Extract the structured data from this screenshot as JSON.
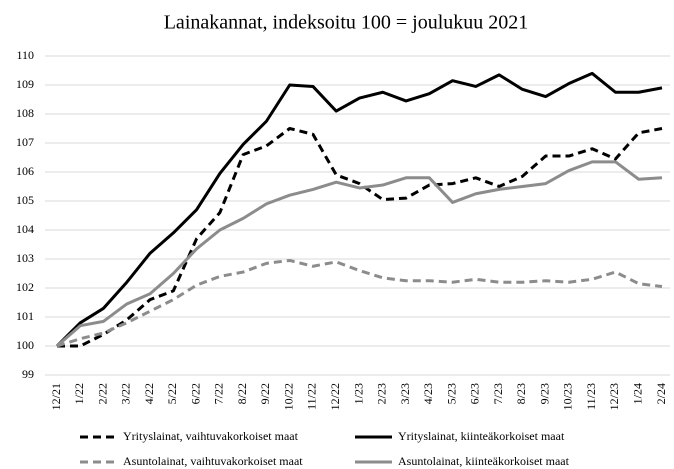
{
  "chart_data": {
    "type": "line",
    "title": "Lainakannat, indeksoitu 100 = joulukuu 2021",
    "categories": [
      "12/21",
      "1/22",
      "2/22",
      "3/22",
      "4/22",
      "5/22",
      "6/22",
      "7/22",
      "8/22",
      "9/22",
      "10/22",
      "11/22",
      "12/22",
      "1/23",
      "2/23",
      "3/23",
      "4/23",
      "5/23",
      "6/23",
      "7/23",
      "8/23",
      "9/23",
      "10/23",
      "11/23",
      "12/23",
      "1/24",
      "2/24"
    ],
    "series": [
      {
        "name": "Yrityslainat, vaihtuvakorkoiset maat",
        "color": "#000000",
        "dashed": true,
        "values": [
          100,
          100,
          100.4,
          100.9,
          101.6,
          101.9,
          103.7,
          104.6,
          106.6,
          106.9,
          107.5,
          107.3,
          105.9,
          105.6,
          105.05,
          105.1,
          105.55,
          105.6,
          105.8,
          105.5,
          105.85,
          106.55,
          106.55,
          106.8,
          106.45,
          107.35,
          107.5
        ]
      },
      {
        "name": "Yrityslainat, kiinteäkorkoiset maat",
        "color": "#000000",
        "dashed": false,
        "values": [
          100,
          100.8,
          101.3,
          102.2,
          103.2,
          103.9,
          104.7,
          105.95,
          106.95,
          107.75,
          109.0,
          108.95,
          108.1,
          108.55,
          108.75,
          108.45,
          108.7,
          109.15,
          108.95,
          109.35,
          108.85,
          108.6,
          109.05,
          109.4,
          108.75,
          108.75,
          108.9
        ]
      },
      {
        "name": "Asuntolainat, vaihtuvakorkoiset maat",
        "color": "#8c8c8c",
        "dashed": true,
        "values": [
          100,
          100.25,
          100.45,
          100.8,
          101.2,
          101.6,
          102.1,
          102.4,
          102.55,
          102.85,
          102.95,
          102.75,
          102.9,
          102.6,
          102.35,
          102.25,
          102.25,
          102.2,
          102.3,
          102.2,
          102.2,
          102.25,
          102.2,
          102.3,
          102.55,
          102.15,
          102.05
        ]
      },
      {
        "name": "Asuntolainat, kiinteäkorkoiset maat",
        "color": "#8c8c8c",
        "dashed": false,
        "values": [
          100,
          100.7,
          100.85,
          101.45,
          101.8,
          102.5,
          103.35,
          104.0,
          104.4,
          104.9,
          105.2,
          105.4,
          105.65,
          105.45,
          105.55,
          105.8,
          105.8,
          104.95,
          105.25,
          105.4,
          105.5,
          105.6,
          106.05,
          106.35,
          106.35,
          105.75,
          105.8
        ]
      }
    ],
    "ylim": [
      99,
      110
    ],
    "yticks": [
      99,
      100,
      101,
      102,
      103,
      104,
      105,
      106,
      107,
      108,
      109,
      110
    ],
    "grid": true,
    "legend": "bottom"
  }
}
